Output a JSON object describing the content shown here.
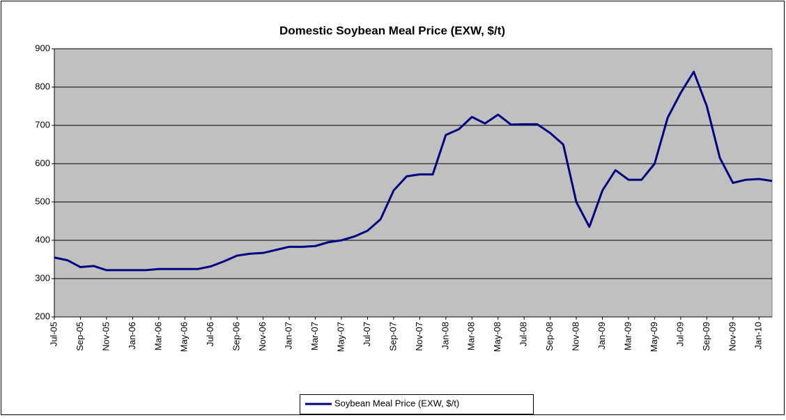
{
  "chart_data": {
    "type": "line",
    "title": "Domestic Soybean Meal Price (EXW, $/t)",
    "categories": [
      "Jul-05",
      null,
      "Sep-05",
      null,
      "Nov-05",
      null,
      "Jan-06",
      null,
      "Mar-06",
      null,
      "May-06",
      null,
      "Jul-06",
      null,
      "Sep-06",
      null,
      "Nov-06",
      null,
      "Jan-07",
      null,
      "Mar-07",
      null,
      "May-07",
      null,
      "Jul-07",
      null,
      "Sep-07",
      null,
      "Nov-07",
      null,
      "Jan-08",
      null,
      "Mar-08",
      null,
      "May-08",
      null,
      "Jul-08",
      null,
      "Sep-08",
      null,
      "Nov-08",
      null,
      "Jan-09",
      null,
      "Mar-09",
      null,
      "May-09",
      null,
      "Jul-09",
      null,
      "Sep-09",
      null,
      "Nov-09",
      null,
      "Jan-10",
      null
    ],
    "series": [
      {
        "name": "Soybean Meal Price (EXW, $/t)",
        "color": "#000080",
        "values": [
          355,
          348,
          330,
          333,
          322,
          322,
          322,
          322,
          325,
          325,
          325,
          325,
          332,
          345,
          360,
          365,
          367,
          375,
          383,
          383,
          385,
          395,
          400,
          410,
          425,
          455,
          530,
          567,
          572,
          572,
          675,
          690,
          722,
          705,
          728,
          702,
          703,
          703,
          680,
          650,
          500,
          435,
          530,
          583,
          558,
          558,
          600,
          720,
          785,
          840,
          750,
          615,
          550,
          558,
          560,
          555
        ]
      }
    ],
    "ylim": [
      200,
      900
    ],
    "yticks": [
      200,
      300,
      400,
      500,
      600,
      700,
      800,
      900
    ],
    "grid": true,
    "legend": "bottom"
  }
}
